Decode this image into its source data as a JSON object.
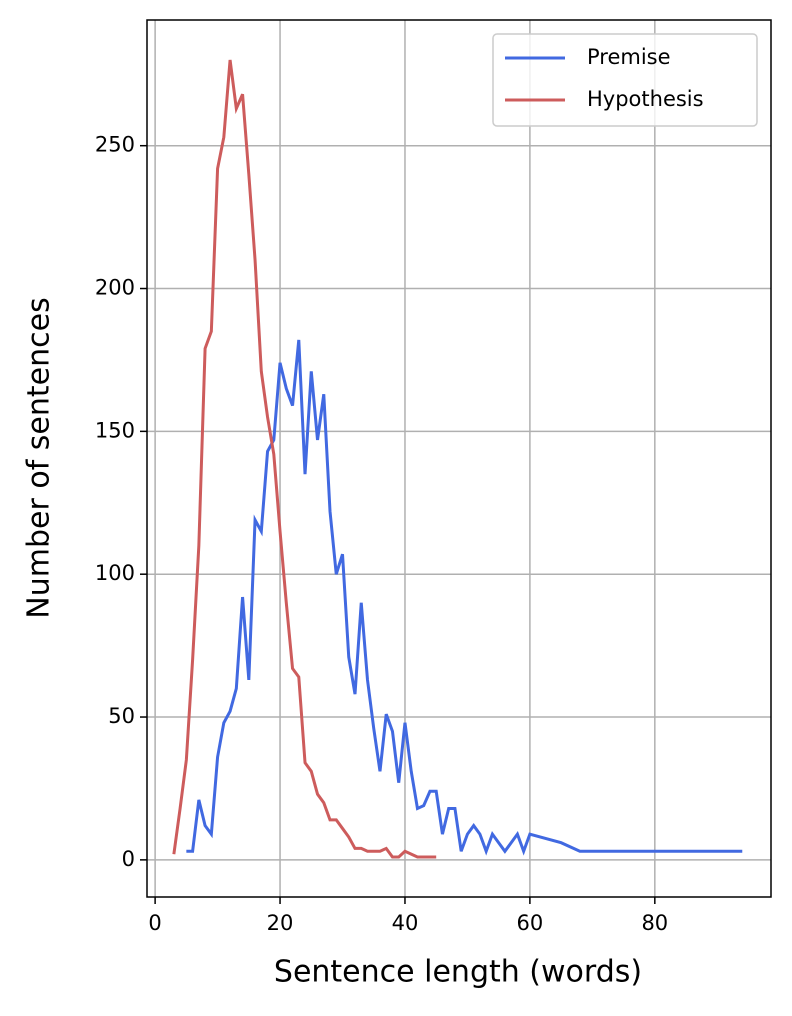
{
  "chart_data": {
    "type": "line",
    "xlabel": "Sentence length (words)",
    "ylabel": "Number of sentences",
    "xlim": [
      -1.3,
      98.6
    ],
    "ylim": [
      -13,
      294
    ],
    "xticks": [
      0,
      20,
      40,
      60,
      80
    ],
    "yticks": [
      0,
      50,
      100,
      150,
      200,
      250
    ],
    "grid": true,
    "legend": "upper right",
    "series": [
      {
        "name": "Premise",
        "color": "#4169e1",
        "x": [
          5,
          6,
          7,
          8,
          9,
          10,
          11,
          12,
          13,
          14,
          15,
          16,
          17,
          18,
          19,
          20,
          21,
          22,
          23,
          24,
          25,
          26,
          27,
          28,
          29,
          30,
          31,
          32,
          33,
          34,
          35,
          36,
          37,
          38,
          39,
          40,
          41,
          42,
          43,
          44,
          45,
          46,
          47,
          48,
          49,
          50,
          51,
          52,
          53,
          54,
          55,
          56,
          57,
          58,
          59,
          60,
          65,
          68,
          94
        ],
        "values": [
          3,
          3,
          21,
          12,
          9,
          36,
          48,
          52,
          60,
          92,
          63,
          119,
          115,
          143,
          147,
          174,
          165,
          159,
          182,
          135,
          171,
          147,
          163,
          122,
          100,
          107,
          71,
          58,
          90,
          63,
          46,
          31,
          51,
          45,
          27,
          48,
          31,
          18,
          19,
          24,
          24,
          9,
          18,
          18,
          3,
          9,
          12,
          9,
          3,
          9,
          6,
          3,
          6,
          9,
          3,
          9,
          6,
          3,
          3
        ]
      },
      {
        "name": "Hypothesis",
        "color": "#cd5c5c",
        "x": [
          3,
          4,
          5,
          6,
          7,
          8,
          9,
          10,
          11,
          12,
          13,
          14,
          15,
          16,
          17,
          18,
          19,
          20,
          21,
          22,
          23,
          24,
          25,
          26,
          27,
          28,
          29,
          30,
          31,
          32,
          33,
          34,
          35,
          36,
          37,
          38,
          39,
          40,
          41,
          42,
          43,
          44,
          45
        ],
        "values": [
          2,
          18,
          35,
          70,
          110,
          179,
          185,
          242,
          253,
          280,
          263,
          268,
          240,
          210,
          171,
          155,
          142,
          115,
          90,
          67,
          64,
          34,
          31,
          23,
          20,
          14,
          14,
          11,
          8,
          4,
          4,
          3,
          3,
          3,
          4,
          1,
          1,
          3,
          2,
          1,
          1,
          1,
          1
        ]
      }
    ]
  }
}
